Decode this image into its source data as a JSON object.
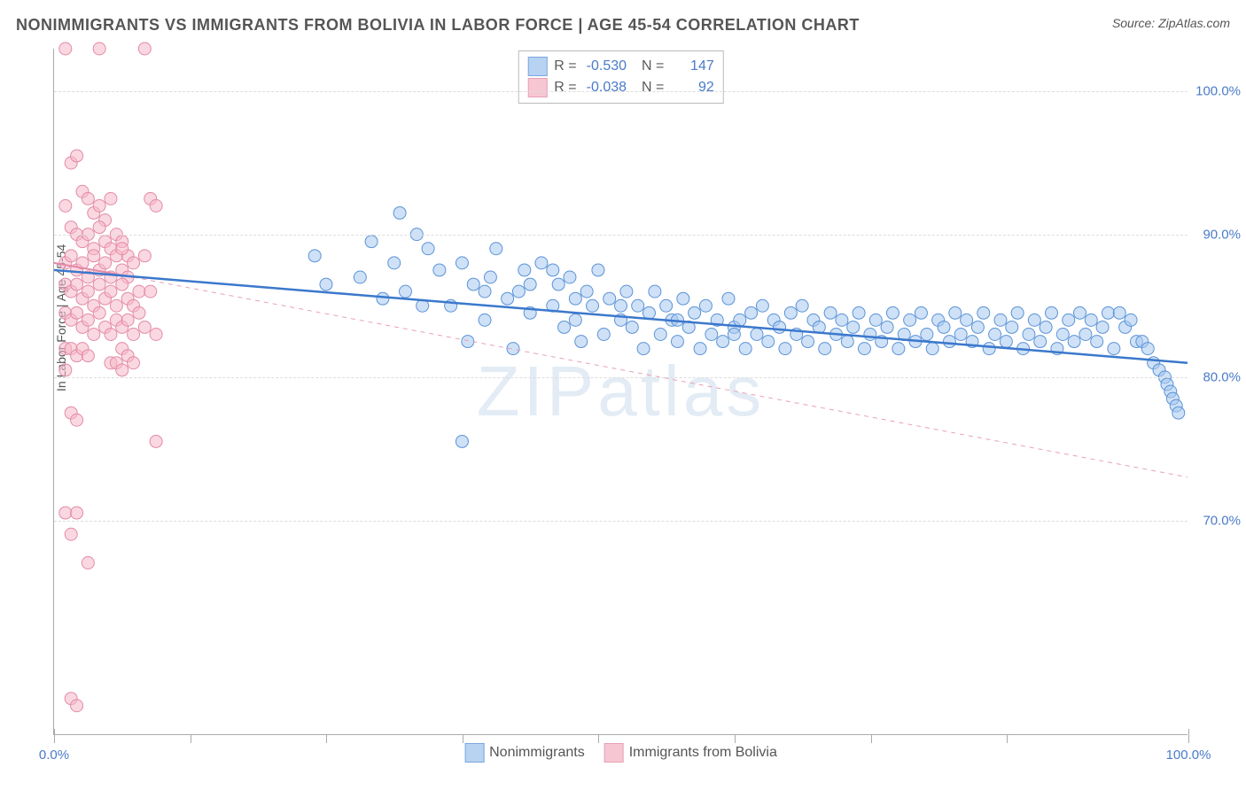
{
  "title": "NONIMMIGRANTS VS IMMIGRANTS FROM BOLIVIA IN LABOR FORCE | AGE 45-54 CORRELATION CHART",
  "source": "Source: ZipAtlas.com",
  "watermark": "ZIPatlas",
  "ylabel": "In Labor Force | Age 45-54",
  "chart": {
    "type": "scatter",
    "xlim": [
      0,
      100
    ],
    "ylim": [
      55,
      103
    ],
    "yticks": [
      70,
      80,
      90,
      100
    ],
    "ytick_labels": [
      "70.0%",
      "80.0%",
      "90.0%",
      "100.0%"
    ],
    "xticks_major": [
      0,
      100
    ],
    "xtick_major_labels": [
      "0.0%",
      "100.0%"
    ],
    "xticks_minor": [
      12,
      24,
      36,
      48,
      60,
      72,
      84
    ],
    "background_color": "#ffffff",
    "grid_color": "#dddddd",
    "marker_radius_blue": 7,
    "marker_radius_pink": 7,
    "series": {
      "nonimmigrants": {
        "label": "Nonimmigrants",
        "R": "-0.530",
        "N": "147",
        "fill": "#a7c8f0",
        "stroke": "#5a93d6",
        "fill_opacity": 0.55,
        "trend": {
          "x1": 0,
          "y1": 87.5,
          "x2": 100,
          "y2": 81.0,
          "color": "#3b78cc",
          "width": 2.5,
          "dash": "none"
        },
        "points": [
          [
            23,
            88.5
          ],
          [
            24,
            86.5
          ],
          [
            27,
            87
          ],
          [
            28,
            89.5
          ],
          [
            29,
            85.5
          ],
          [
            30,
            88
          ],
          [
            30.5,
            91.5
          ],
          [
            31,
            86
          ],
          [
            32,
            90
          ],
          [
            32.5,
            85
          ],
          [
            33,
            89
          ],
          [
            34,
            87.5
          ],
          [
            35,
            85
          ],
          [
            36,
            88
          ],
          [
            36.5,
            82.5
          ],
          [
            37,
            86.5
          ],
          [
            38,
            84
          ],
          [
            38.5,
            87
          ],
          [
            39,
            89
          ],
          [
            40,
            85.5
          ],
          [
            40.5,
            82
          ],
          [
            41,
            86
          ],
          [
            41.5,
            87.5
          ],
          [
            42,
            84.5
          ],
          [
            43,
            88
          ],
          [
            44,
            85
          ],
          [
            44.5,
            86.5
          ],
          [
            45,
            83.5
          ],
          [
            45.5,
            87
          ],
          [
            46,
            84
          ],
          [
            46.5,
            82.5
          ],
          [
            47,
            86
          ],
          [
            47.5,
            85
          ],
          [
            48,
            87.5
          ],
          [
            48.5,
            83
          ],
          [
            49,
            85.5
          ],
          [
            50,
            84
          ],
          [
            50.5,
            86
          ],
          [
            51,
            83.5
          ],
          [
            51.5,
            85
          ],
          [
            52,
            82
          ],
          [
            52.5,
            84.5
          ],
          [
            53,
            86
          ],
          [
            53.5,
            83
          ],
          [
            54,
            85
          ],
          [
            54.5,
            84
          ],
          [
            55,
            82.5
          ],
          [
            55.5,
            85.5
          ],
          [
            56,
            83.5
          ],
          [
            56.5,
            84.5
          ],
          [
            57,
            82
          ],
          [
            57.5,
            85
          ],
          [
            58,
            83
          ],
          [
            58.5,
            84
          ],
          [
            59,
            82.5
          ],
          [
            59.5,
            85.5
          ],
          [
            60,
            83.5
          ],
          [
            60.5,
            84
          ],
          [
            61,
            82
          ],
          [
            61.5,
            84.5
          ],
          [
            62,
            83
          ],
          [
            62.5,
            85
          ],
          [
            63,
            82.5
          ],
          [
            63.5,
            84
          ],
          [
            64,
            83.5
          ],
          [
            64.5,
            82
          ],
          [
            65,
            84.5
          ],
          [
            65.5,
            83
          ],
          [
            66,
            85
          ],
          [
            66.5,
            82.5
          ],
          [
            67,
            84
          ],
          [
            67.5,
            83.5
          ],
          [
            68,
            82
          ],
          [
            68.5,
            84.5
          ],
          [
            69,
            83
          ],
          [
            69.5,
            84
          ],
          [
            70,
            82.5
          ],
          [
            70.5,
            83.5
          ],
          [
            71,
            84.5
          ],
          [
            71.5,
            82
          ],
          [
            72,
            83
          ],
          [
            72.5,
            84
          ],
          [
            73,
            82.5
          ],
          [
            73.5,
            83.5
          ],
          [
            74,
            84.5
          ],
          [
            74.5,
            82
          ],
          [
            75,
            83
          ],
          [
            75.5,
            84
          ],
          [
            76,
            82.5
          ],
          [
            76.5,
            84.5
          ],
          [
            77,
            83
          ],
          [
            77.5,
            82
          ],
          [
            78,
            84
          ],
          [
            78.5,
            83.5
          ],
          [
            79,
            82.5
          ],
          [
            79.5,
            84.5
          ],
          [
            80,
            83
          ],
          [
            80.5,
            84
          ],
          [
            81,
            82.5
          ],
          [
            81.5,
            83.5
          ],
          [
            82,
            84.5
          ],
          [
            82.5,
            82
          ],
          [
            83,
            83
          ],
          [
            83.5,
            84
          ],
          [
            84,
            82.5
          ],
          [
            84.5,
            83.5
          ],
          [
            85,
            84.5
          ],
          [
            85.5,
            82
          ],
          [
            86,
            83
          ],
          [
            86.5,
            84
          ],
          [
            87,
            82.5
          ],
          [
            87.5,
            83.5
          ],
          [
            88,
            84.5
          ],
          [
            88.5,
            82
          ],
          [
            89,
            83
          ],
          [
            89.5,
            84
          ],
          [
            90,
            82.5
          ],
          [
            90.5,
            84.5
          ],
          [
            91,
            83
          ],
          [
            91.5,
            84
          ],
          [
            92,
            82.5
          ],
          [
            92.5,
            83.5
          ],
          [
            93,
            84.5
          ],
          [
            93.5,
            82
          ],
          [
            94,
            84.5
          ],
          [
            94.5,
            83.5
          ],
          [
            95,
            84
          ],
          [
            95.5,
            82.5
          ],
          [
            96,
            82.5
          ],
          [
            96.5,
            82
          ],
          [
            97,
            81
          ],
          [
            97.5,
            80.5
          ],
          [
            98,
            80
          ],
          [
            98.2,
            79.5
          ],
          [
            98.5,
            79
          ],
          [
            98.7,
            78.5
          ],
          [
            99,
            78
          ],
          [
            99.2,
            77.5
          ],
          [
            36,
            75.5
          ],
          [
            38,
            86
          ],
          [
            42,
            86.5
          ],
          [
            44,
            87.5
          ],
          [
            46,
            85.5
          ],
          [
            50,
            85
          ],
          [
            55,
            84
          ],
          [
            60,
            83
          ]
        ]
      },
      "immigrants": {
        "label": "Immigrants from Bolivia",
        "R": "-0.038",
        "N": "92",
        "fill": "#f5b8c9",
        "stroke": "#e38aa6",
        "fill_opacity": 0.55,
        "trend_solid": {
          "x1": 0,
          "y1": 88.0,
          "x2": 7,
          "y2": 87.0,
          "color": "#e38aa6",
          "width": 2,
          "dash": "none"
        },
        "trend_dash": {
          "x1": 7,
          "y1": 87.0,
          "x2": 100,
          "y2": 73.0,
          "color": "#e9a0b5",
          "width": 1,
          "dash": "5,5"
        },
        "points": [
          [
            1,
            103
          ],
          [
            4,
            103
          ],
          [
            8,
            103
          ],
          [
            1.5,
            95
          ],
          [
            2,
            95.5
          ],
          [
            2.5,
            93
          ],
          [
            3,
            92.5
          ],
          [
            1,
            92
          ],
          [
            3.5,
            91.5
          ],
          [
            4,
            92
          ],
          [
            4.5,
            91
          ],
          [
            5,
            92.5
          ],
          [
            1.5,
            90.5
          ],
          [
            2,
            90
          ],
          [
            2.5,
            89.5
          ],
          [
            3,
            90
          ],
          [
            3.5,
            89
          ],
          [
            4,
            90.5
          ],
          [
            4.5,
            89.5
          ],
          [
            5,
            89
          ],
          [
            5.5,
            90
          ],
          [
            6,
            89.5
          ],
          [
            6.5,
            88.5
          ],
          [
            1,
            88
          ],
          [
            1.5,
            88.5
          ],
          [
            2,
            87.5
          ],
          [
            2.5,
            88
          ],
          [
            3,
            87
          ],
          [
            3.5,
            88.5
          ],
          [
            4,
            87.5
          ],
          [
            4.5,
            88
          ],
          [
            5,
            87
          ],
          [
            5.5,
            88.5
          ],
          [
            6,
            87.5
          ],
          [
            6.5,
            87
          ],
          [
            7,
            88
          ],
          [
            1,
            86.5
          ],
          [
            1.5,
            86
          ],
          [
            2,
            86.5
          ],
          [
            2.5,
            85.5
          ],
          [
            3,
            86
          ],
          [
            3.5,
            85
          ],
          [
            4,
            86.5
          ],
          [
            4.5,
            85.5
          ],
          [
            5,
            86
          ],
          [
            5.5,
            85
          ],
          [
            6,
            86.5
          ],
          [
            6.5,
            85.5
          ],
          [
            7,
            85
          ],
          [
            7.5,
            86
          ],
          [
            1,
            84.5
          ],
          [
            1.5,
            84
          ],
          [
            2,
            84.5
          ],
          [
            2.5,
            83.5
          ],
          [
            3,
            84
          ],
          [
            3.5,
            83
          ],
          [
            4,
            84.5
          ],
          [
            4.5,
            83.5
          ],
          [
            5,
            83
          ],
          [
            5.5,
            84
          ],
          [
            6,
            83.5
          ],
          [
            6.5,
            84
          ],
          [
            7,
            83
          ],
          [
            7.5,
            84.5
          ],
          [
            8,
            83.5
          ],
          [
            8.5,
            92.5
          ],
          [
            9,
            92
          ],
          [
            1,
            82
          ],
          [
            1.5,
            82
          ],
          [
            2,
            81.5
          ],
          [
            2.5,
            82
          ],
          [
            3,
            81.5
          ],
          [
            5,
            81
          ],
          [
            5.5,
            81
          ],
          [
            6,
            82
          ],
          [
            6.5,
            81.5
          ],
          [
            1,
            80.5
          ],
          [
            6,
            80.5
          ],
          [
            7,
            81
          ],
          [
            1.5,
            77.5
          ],
          [
            2,
            77
          ],
          [
            9,
            75.5
          ],
          [
            1,
            70.5
          ],
          [
            2,
            70.5
          ],
          [
            1.5,
            69
          ],
          [
            3,
            67
          ],
          [
            1.5,
            57.5
          ],
          [
            2,
            57
          ],
          [
            8,
            88.5
          ],
          [
            8.5,
            86
          ],
          [
            9,
            83
          ],
          [
            6,
            89
          ]
        ]
      }
    }
  }
}
